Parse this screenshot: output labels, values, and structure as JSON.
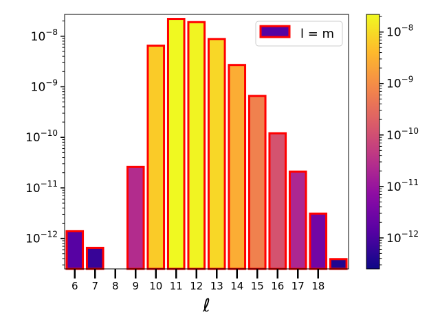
{
  "chart_data": {
    "type": "bar",
    "x": [
      6,
      7,
      8,
      9,
      10,
      11,
      12,
      13,
      14,
      15,
      16,
      17,
      18,
      19
    ],
    "x_tick_labels": [
      "6",
      "7",
      "8",
      "9",
      "10",
      "11",
      "12",
      "13",
      "14",
      "15",
      "16",
      "17",
      "18"
    ],
    "values": [
      1.4e-12,
      6.5e-13,
      2.5e-13,
      2.6e-11,
      6.5e-09,
      2.2e-08,
      1.9e-08,
      8.8e-09,
      2.7e-09,
      6.6e-10,
      1.2e-10,
      2.1e-11,
      3.1e-12,
      3.9e-13
    ],
    "xlabel": "ℓ",
    "ylabel": "",
    "yscale": "log",
    "ylim": [
      2.5e-13,
      2.7e-08
    ],
    "y_tick_labels": [
      {
        "base": "10",
        "exp": "−12"
      },
      {
        "base": "10",
        "exp": "−11"
      },
      {
        "base": "10",
        "exp": "−10"
      },
      {
        "base": "10",
        "exp": "−9"
      },
      {
        "base": "10",
        "exp": "−8"
      }
    ],
    "legend": {
      "label": "l = m",
      "position": "top-right"
    },
    "bar_edge_color": "#ff0000",
    "colormap": "plasma",
    "colorbar": {
      "scale": "log",
      "range": [
        2.5e-13,
        2.2e-08
      ],
      "tick_labels": [
        {
          "base": "10",
          "exp": "−12"
        },
        {
          "base": "10",
          "exp": "−11"
        },
        {
          "base": "10",
          "exp": "−10"
        },
        {
          "base": "10",
          "exp": "−9"
        },
        {
          "base": "10",
          "exp": "−8"
        }
      ]
    },
    "grid": false
  }
}
